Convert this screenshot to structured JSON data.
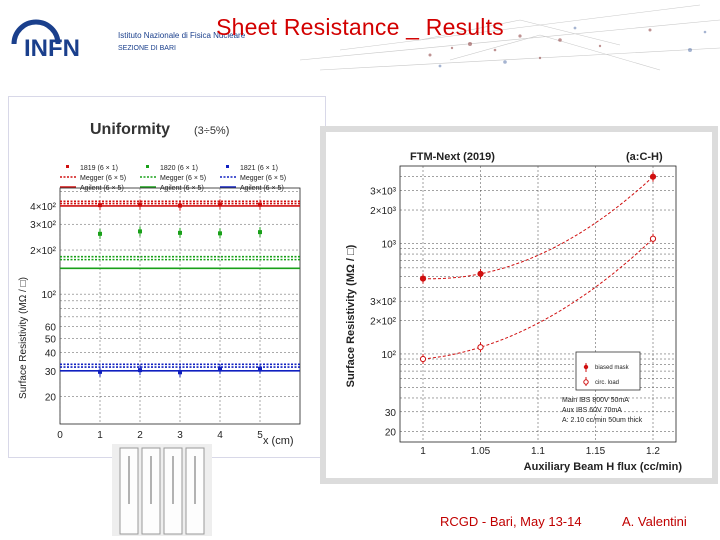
{
  "slide": {
    "title": "Sheet Resistance _ Results",
    "footer_event": "RCGD  - Bari, May 13-14",
    "footer_author": "A. Valentini",
    "accent_color": "#c00000"
  },
  "logo": {
    "acronym": "INFN",
    "line1": "Istituto Nazionale di Fisica Nucleare",
    "line2": "SEZIONE DI BARI"
  },
  "left_plot": {
    "heading": "Uniformity",
    "heading_note": "(3÷5%)",
    "legend": [
      [
        "1819 (6 × 1)",
        "1820 (6 × 1)",
        "1821 (6 × 1)"
      ],
      [
        "Megger (6 × 5)",
        "Megger (6 × 5)",
        "Megger (6 × 5)"
      ],
      [
        "Agilent (6 × 5)",
        "Agilent (6 × 5)",
        "Agilent (6 × 5)"
      ]
    ],
    "ylabel": "Surface Resistivity (MΩ / □)",
    "xlabel": "x (cm)",
    "yticks": [
      "4×10²",
      "3×10²",
      "2×10²",
      "10²",
      "60",
      "50",
      "40",
      "30",
      "20"
    ],
    "xticks": [
      "0",
      "1",
      "2",
      "3",
      "4",
      "5"
    ],
    "colors": {
      "s1819": "#d01010",
      "s1820": "#19a019",
      "s1821": "#1020c0"
    }
  },
  "right_plot": {
    "title": "FTM-Next (2019)",
    "tag": "(a:C-H)",
    "ylabel": "Surface Resistivity (MΩ / □)",
    "xlabel": "Auxiliary Beam H flux (cc/min)",
    "xticks": [
      "1",
      "1.05",
      "1.1",
      "1.15",
      "1.2"
    ],
    "yticks": [
      "3×10³",
      "2×10³",
      "10³",
      "3×10²",
      "2×10²",
      "10²",
      "30",
      "20"
    ],
    "legend": [
      "biased mask",
      "circ. load"
    ],
    "conditions": [
      "Main IBS 800V 50mA",
      "Aux IBS  60V 70mA",
      "A: 2.10 cc/min 50um thick"
    ]
  },
  "chart_data": [
    {
      "type": "scatter",
      "title": "Uniformity",
      "xlabel": "x (cm)",
      "ylabel": "Surface Resistivity (MΩ / □)",
      "ylog": true,
      "xlim": [
        0,
        6
      ],
      "ylim": [
        13,
        530
      ],
      "series": [
        {
          "name": "1819 (6 × 1)",
          "x": [
            1,
            2,
            3,
            4,
            5
          ],
          "y": [
            405,
            408,
            402,
            410,
            408
          ]
        },
        {
          "name": "1820 (6 × 1)",
          "x": [
            1,
            2,
            3,
            4,
            5
          ],
          "y": [
            258,
            268,
            262,
            260,
            265
          ]
        },
        {
          "name": "1821 (6 × 1)",
          "x": [
            1,
            2,
            3,
            4,
            5
          ],
          "y": [
            29.5,
            30.3,
            29.3,
            30.8,
            31.0
          ]
        },
        {
          "name": "Megger (6 × 5)",
          "y": [
            430,
            415,
            180,
            172,
            33.2,
            31.8
          ]
        },
        {
          "name": "Agilent (6 × 5)",
          "y": [
            400,
            150,
            30
          ]
        }
      ],
      "grid": true,
      "legend": "top"
    },
    {
      "type": "line",
      "title": "FTM-Next (2019)",
      "xlabel": "Auxiliary Beam H flux (cc/min)",
      "ylabel": "Surface Resistivity (MΩ / □)",
      "ylog": true,
      "xlim": [
        0.98,
        1.22
      ],
      "ylim": [
        16,
        5000
      ],
      "series": [
        {
          "name": "biased mask",
          "x": [
            1,
            1.05,
            1.2
          ],
          "y": [
            480,
            530,
            4000
          ]
        },
        {
          "name": "circ. load",
          "x": [
            1,
            1.05,
            1.2
          ],
          "y": [
            90,
            115,
            1100
          ]
        }
      ],
      "grid": true,
      "legend": "bottom-right"
    }
  ]
}
